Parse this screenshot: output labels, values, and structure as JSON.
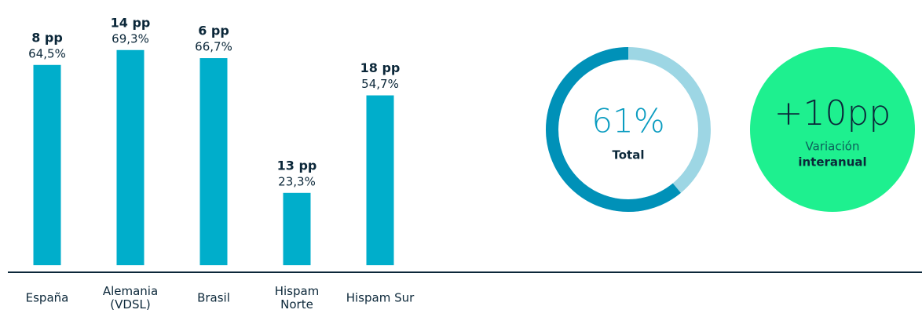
{
  "chart_data": [
    {
      "type": "bar",
      "categories": [
        "España",
        "Alemania (VDSL)",
        "Brasil",
        "Hispam Norte",
        "Hispam Sur"
      ],
      "values": [
        64.5,
        69.3,
        66.7,
        23.3,
        54.7
      ],
      "value_labels": [
        "64,5%",
        "69,3%",
        "66,7%",
        "23,3%",
        "54,7%"
      ],
      "change_labels": [
        "8 pp",
        "14 pp",
        "6 pp",
        "13 pp",
        "18 pp"
      ],
      "color": "#00aecb",
      "ylim": [
        0,
        70
      ]
    },
    {
      "type": "pie",
      "value": 61,
      "value_label": "61%",
      "label": "Total",
      "color": "#0091b8",
      "rest_color": "#9dd6e4"
    }
  ],
  "variation": {
    "text": "+10pp",
    "label": "Variación",
    "label_bold": "interanual",
    "color": "#1ef08f"
  }
}
